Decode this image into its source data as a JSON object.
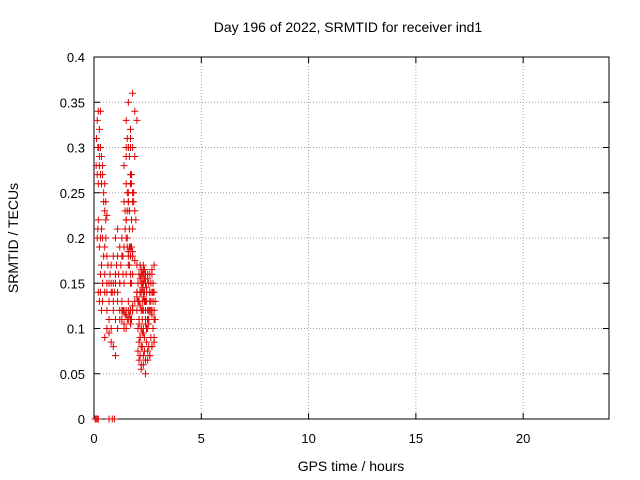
{
  "chart_data": {
    "type": "scatter",
    "title": "Day 196 of 2022, SRMTID for receiver ind1",
    "xlabel": "GPS time / hours",
    "ylabel": "SRMTID / TECUs",
    "xlim": [
      0,
      24
    ],
    "ylim": [
      0,
      0.4
    ],
    "xticks": [
      0,
      5,
      10,
      15,
      20
    ],
    "yticks": [
      0,
      0.05,
      0.1,
      0.15,
      0.2,
      0.25,
      0.3,
      0.35,
      0.4
    ],
    "xtick_labels": [
      "0",
      "5",
      "10",
      "15",
      "20"
    ],
    "ytick_labels": [
      "0",
      "0.05",
      "0.1",
      "0.15",
      "0.2",
      "0.25",
      "0.3",
      "0.35",
      "0.4"
    ],
    "grid": true,
    "marker": "+",
    "series": [
      {
        "name": "SRMTID",
        "color": "#e00000",
        "x": [
          0.05,
          0.1,
          0.15,
          0.2,
          0.7,
          0.85,
          0.95,
          0.1,
          0.12,
          0.15,
          0.18,
          0.2,
          0.22,
          0.25,
          0.3,
          0.35,
          0.4,
          0.45,
          0.5,
          0.55,
          0.6,
          0.15,
          0.18,
          0.2,
          0.25,
          0.3,
          0.35,
          0.4,
          0.45,
          0.5,
          0.55,
          0.6,
          0.65,
          0.3,
          0.35,
          0.4,
          0.5,
          0.6,
          0.7,
          0.75,
          0.8,
          0.85,
          0.9,
          0.95,
          1.0,
          0.2,
          0.25,
          0.3,
          0.35,
          0.4,
          0.5,
          0.6,
          0.7,
          0.8,
          0.9,
          1.0,
          1.1,
          1.2,
          1.3,
          1.4,
          0.6,
          0.7,
          0.8,
          0.9,
          1.0,
          1.1,
          1.2,
          1.3,
          1.4,
          1.5,
          1.6,
          1.7,
          1.8,
          0.5,
          0.6,
          0.7,
          0.8,
          0.9,
          1.0,
          1.1,
          1.2,
          1.3,
          1.4,
          1.5,
          1.6,
          1.7,
          1.8,
          1.9,
          2.0,
          0.8,
          0.9,
          1.0,
          1.05,
          1.1,
          1.15,
          1.2,
          1.25,
          1.3,
          1.35,
          1.4,
          1.5,
          1.6,
          1.7,
          1.8,
          1.0,
          1.1,
          1.2,
          1.3,
          1.35,
          1.4,
          1.45,
          1.5,
          1.55,
          1.6,
          1.65,
          1.7,
          1.75,
          1.4,
          1.45,
          1.5,
          1.55,
          1.6,
          1.65,
          1.7,
          1.75,
          1.8,
          1.85,
          1.9,
          1.95,
          1.4,
          1.5,
          1.6,
          1.7,
          1.8,
          1.9,
          1.5,
          1.6,
          1.7,
          1.8,
          1.9,
          2.0,
          2.0,
          2.05,
          2.1,
          2.15,
          2.2,
          2.25,
          2.3,
          2.35,
          2.4,
          2.45,
          2.5,
          2.55,
          2.6,
          2.65,
          2.7,
          2.75,
          2.8,
          2.85,
          2.05,
          2.1,
          2.15,
          2.2,
          2.25,
          2.3,
          2.35,
          2.4,
          2.45,
          2.5,
          2.55,
          2.6,
          2.65,
          2.7,
          2.75,
          2.8,
          2.0,
          2.05,
          2.1,
          2.15,
          2.2,
          2.25,
          2.3,
          2.35,
          2.4,
          2.45,
          2.5,
          2.55,
          2.6,
          2.65,
          2.7,
          2.75,
          2.1,
          2.15,
          2.2,
          2.25,
          2.3,
          2.35,
          2.4,
          2.45,
          2.5,
          2.55,
          2.6,
          2.7,
          2.8,
          2.05,
          2.15,
          2.25,
          2.35,
          2.45,
          2.55,
          2.65,
          2.75,
          2.85,
          2.1,
          2.2,
          2.3,
          2.4,
          2.5,
          2.6,
          2.7,
          2.8,
          2.2,
          2.3,
          2.4,
          2.5,
          2.6,
          2.7,
          2.8,
          2.1,
          2.15,
          2.2,
          2.25,
          2.3,
          2.35,
          2.4,
          2.45,
          2.15,
          2.2,
          2.25,
          2.3,
          2.35,
          2.4,
          2.1,
          2.2,
          2.3,
          2.4,
          2.5,
          2.15,
          2.25,
          2.35,
          2.0,
          2.1,
          2.2,
          2.3,
          2.4,
          2.2,
          2.3,
          2.4,
          2.5,
          2.6,
          2.7,
          2.8,
          1.7,
          1.8,
          1.9,
          2.0,
          0.3,
          0.25,
          0.35,
          0.4,
          0.45,
          0.5,
          0.55,
          0.15,
          0.2,
          0.25,
          0.3,
          1.5,
          1.55,
          1.6,
          1.65,
          1.7,
          1.5,
          1.55,
          1.6,
          1.65,
          1.55,
          1.65,
          1.75,
          1.8,
          1.6,
          1.65,
          1.7,
          1.75,
          1.8,
          1.5,
          1.6,
          1.7,
          1.75,
          1.8,
          1.85,
          1.3,
          1.35,
          1.4,
          1.45,
          1.5,
          1.55,
          1.6,
          1.65,
          1.7,
          1.75,
          1.8
        ],
        "y": [
          0,
          0,
          0,
          0,
          0,
          0,
          0,
          0.28,
          0.31,
          0.27,
          0.3,
          0.26,
          0.3,
          0.29,
          0.34,
          0.26,
          0.27,
          0.24,
          0.23,
          0.22,
          0.225,
          0.2,
          0.21,
          0.22,
          0.19,
          0.2,
          0.21,
          0.2,
          0.18,
          0.19,
          0.2,
          0.18,
          0.17,
          0.16,
          0.17,
          0.15,
          0.16,
          0.14,
          0.15,
          0.16,
          0.15,
          0.14,
          0.13,
          0.14,
          0.15,
          0.14,
          0.13,
          0.14,
          0.12,
          0.13,
          0.14,
          0.15,
          0.13,
          0.14,
          0.15,
          0.16,
          0.14,
          0.15,
          0.13,
          0.12,
          0.12,
          0.11,
          0.1,
          0.12,
          0.11,
          0.13,
          0.12,
          0.11,
          0.1,
          0.12,
          0.13,
          0.11,
          0.12,
          0.09,
          0.1,
          0.095,
          0.085,
          0.08,
          0.07,
          0.1,
          0.11,
          0.12,
          0.105,
          0.115,
          0.11,
          0.12,
          0.125,
          0.13,
          0.14,
          0.17,
          0.18,
          0.16,
          0.17,
          0.18,
          0.16,
          0.15,
          0.17,
          0.18,
          0.16,
          0.15,
          0.16,
          0.17,
          0.15,
          0.16,
          0.2,
          0.21,
          0.19,
          0.2,
          0.18,
          0.19,
          0.21,
          0.2,
          0.19,
          0.18,
          0.17,
          0.16,
          0.15,
          0.24,
          0.23,
          0.22,
          0.25,
          0.24,
          0.23,
          0.26,
          0.27,
          0.25,
          0.24,
          0.23,
          0.22,
          0.28,
          0.29,
          0.3,
          0.31,
          0.3,
          0.29,
          0.33,
          0.35,
          0.32,
          0.36,
          0.34,
          0.33,
          0.12,
          0.13,
          0.11,
          0.14,
          0.12,
          0.13,
          0.15,
          0.14,
          0.12,
          0.13,
          0.11,
          0.12,
          0.14,
          0.13,
          0.12,
          0.15,
          0.14,
          0.13,
          0.1,
          0.11,
          0.09,
          0.1,
          0.11,
          0.12,
          0.13,
          0.11,
          0.1,
          0.12,
          0.11,
          0.13,
          0.12,
          0.14,
          0.13,
          0.12,
          0.14,
          0.15,
          0.13,
          0.14,
          0.16,
          0.15,
          0.14,
          0.13,
          0.15,
          0.14,
          0.16,
          0.15,
          0.14,
          0.15,
          0.16,
          0.14,
          0.085,
          0.09,
          0.08,
          0.095,
          0.1,
          0.09,
          0.105,
          0.1,
          0.11,
          0.105,
          0.12,
          0.115,
          0.11,
          0.075,
          0.07,
          0.08,
          0.075,
          0.085,
          0.08,
          0.09,
          0.1,
          0.11,
          0.065,
          0.06,
          0.07,
          0.065,
          0.075,
          0.07,
          0.08,
          0.09,
          0.055,
          0.06,
          0.05,
          0.065,
          0.07,
          0.08,
          0.085,
          0.16,
          0.155,
          0.15,
          0.145,
          0.16,
          0.155,
          0.15,
          0.145,
          0.17,
          0.165,
          0.16,
          0.17,
          0.165,
          0.16,
          0.105,
          0.1,
          0.095,
          0.105,
          0.1,
          0.125,
          0.12,
          0.13,
          0.135,
          0.13,
          0.14,
          0.135,
          0.13,
          0.16,
          0.165,
          0.15,
          0.155,
          0.16,
          0.165,
          0.17,
          0.19,
          0.18,
          0.175,
          0.17,
          0.3,
          0.32,
          0.29,
          0.28,
          0.25,
          0.26,
          0.24,
          0.33,
          0.34,
          0.28,
          0.27,
          0.3,
          0.31,
          0.3,
          0.29,
          0.3,
          0.22,
          0.23,
          0.24,
          0.23,
          0.2,
          0.21,
          0.22,
          0.21,
          0.185,
          0.19,
          0.18,
          0.19,
          0.185,
          0.26,
          0.25,
          0.27,
          0.26,
          0.24,
          0.25,
          0.11,
          0.12,
          0.105,
          0.115,
          0.1,
          0.11,
          0.12,
          0.115,
          0.105,
          0.11,
          0.12
        ]
      }
    ]
  }
}
